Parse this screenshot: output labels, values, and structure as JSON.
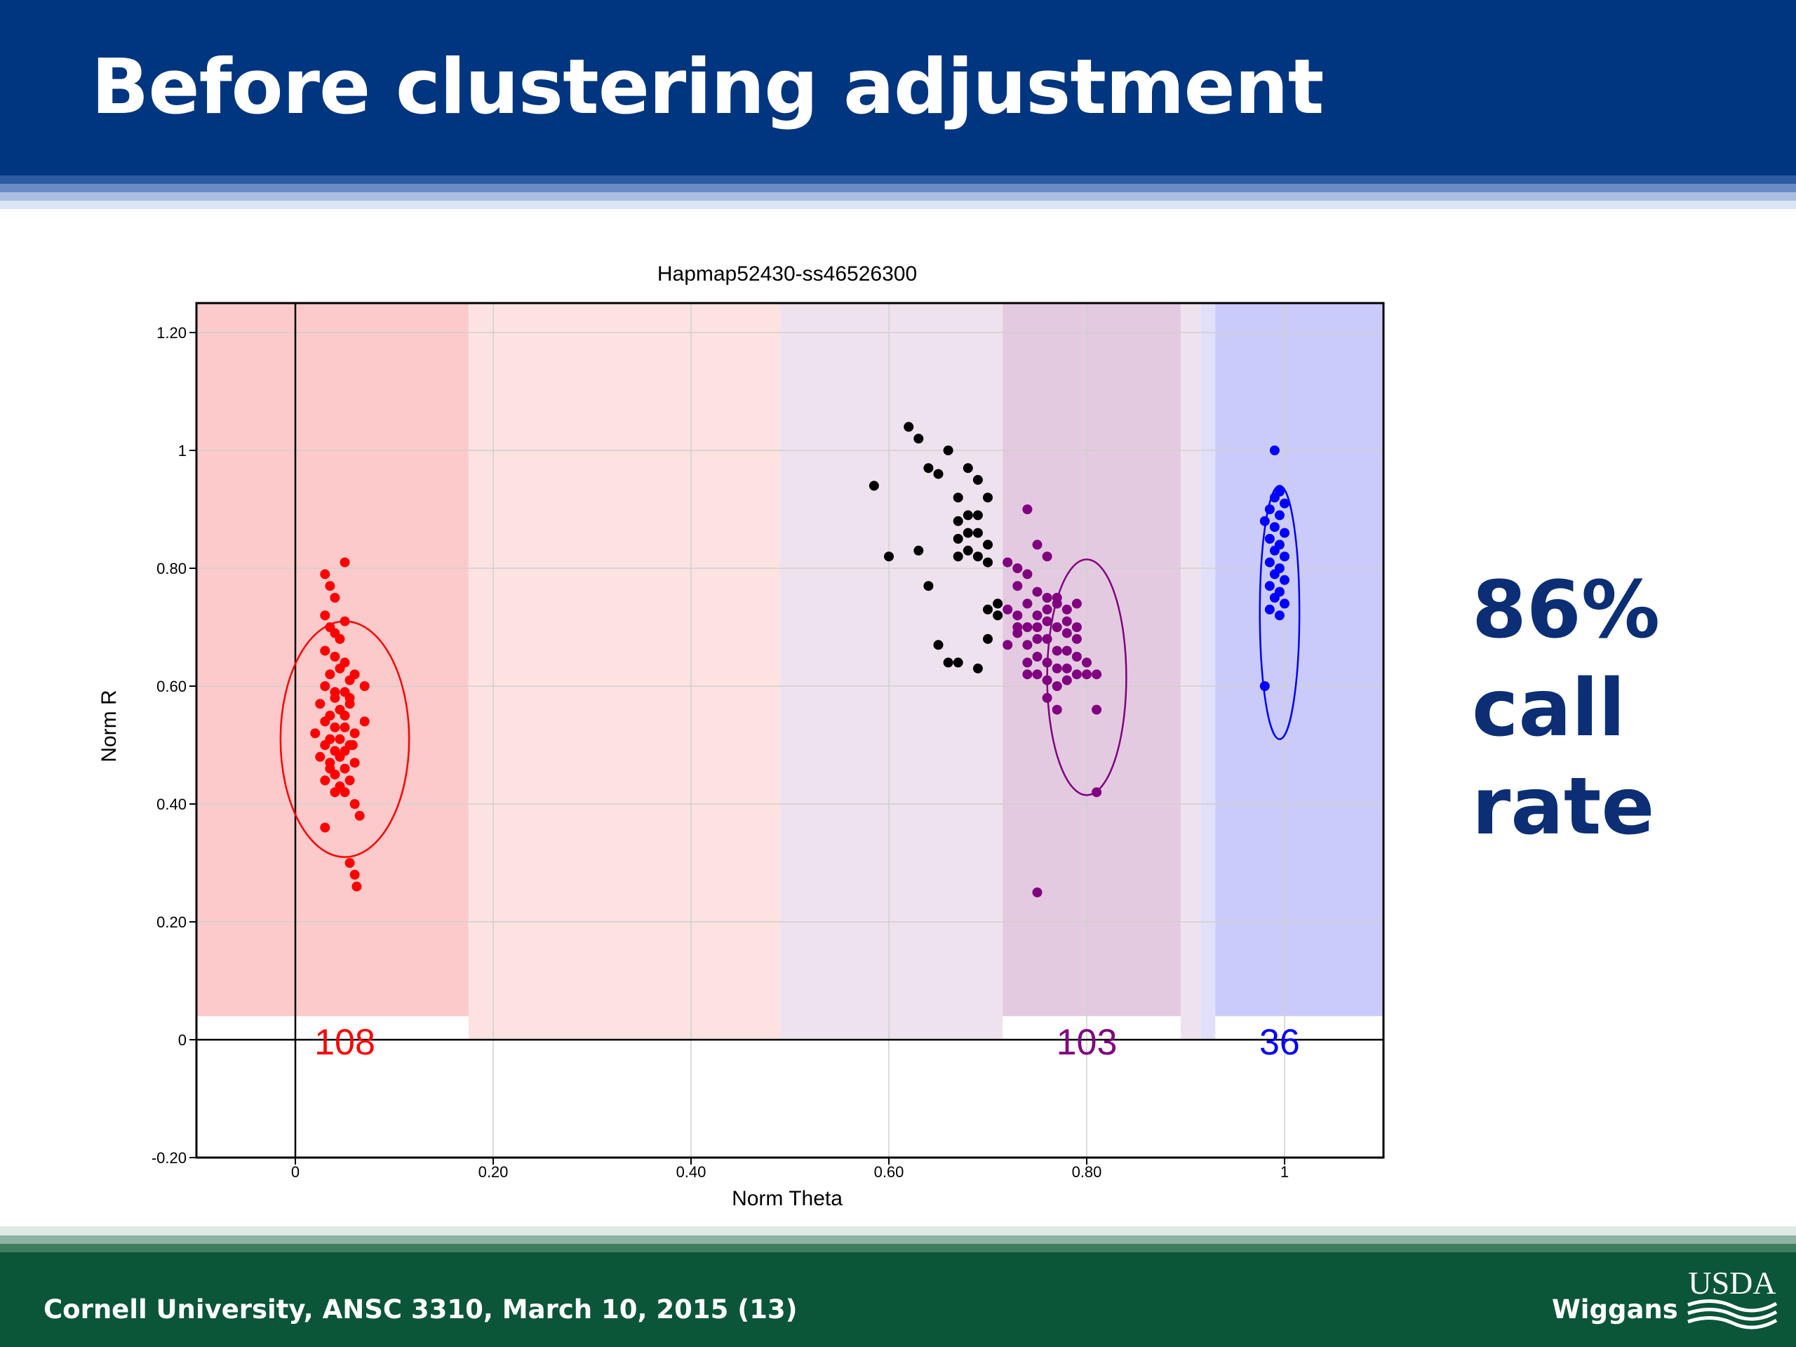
{
  "slide": {
    "title": "Before clustering adjustment",
    "stat_lines": [
      "86%",
      "call",
      "rate"
    ],
    "footer_left": "Cornell University, ANSC 3310, March 10, 2015 (13)",
    "footer_right": "Wiggans",
    "logo_text": "USDA"
  },
  "colors": {
    "header": "#00357f",
    "footer": "#0b5638",
    "stat_text": "#0b2e74",
    "AA": "#ff0000",
    "AB": "#800080",
    "BB": "#0000ff",
    "nocall": "#000000"
  },
  "chart_data": {
    "type": "scatter",
    "title": "Hapmap52430-ss46526300",
    "xlabel": "Norm Theta",
    "ylabel": "Norm R",
    "xlim": [
      -0.1,
      1.1
    ],
    "ylim": [
      -0.2,
      1.25
    ],
    "xticks": [
      0,
      0.2,
      0.4,
      0.6,
      0.8,
      1
    ],
    "xtick_labels": [
      "0",
      "0.20",
      "0.40",
      "0.60",
      "0.80",
      "1"
    ],
    "yticks": [
      -0.2,
      0,
      0.2,
      0.4,
      0.6,
      0.8,
      1,
      1.2
    ],
    "ytick_labels": [
      "-0.20",
      "0",
      "0.20",
      "0.40",
      "0.60",
      "0.80",
      "1",
      "1.20"
    ],
    "grid": true,
    "cluster_counts": [
      {
        "label": "108",
        "x": 0.05,
        "color": "#ff0000"
      },
      {
        "label": "103",
        "x": 0.8,
        "color": "#800080"
      },
      {
        "label": "36",
        "x": 0.995,
        "color": "#0000ff"
      }
    ],
    "regions": [
      {
        "x0": -0.1,
        "x1": 0.175,
        "y0": 0.04,
        "color": "#fccaca"
      },
      {
        "x0": 0.175,
        "x1": 0.49,
        "y0": 0.0,
        "color": "#fde2e2"
      },
      {
        "x0": 0.49,
        "x1": 0.715,
        "y0": 0.0,
        "color": "#efe2ef"
      },
      {
        "x0": 0.715,
        "x1": 0.895,
        "y0": 0.04,
        "color": "#e4cae0"
      },
      {
        "x0": 0.895,
        "x1": 0.915,
        "y0": 0.0,
        "color": "#efe2ef"
      },
      {
        "x0": 0.915,
        "x1": 0.93,
        "y0": 0.0,
        "color": "#e0e0fb"
      },
      {
        "x0": 0.93,
        "x1": 1.1,
        "y0": 0.04,
        "color": "#cbcbfb"
      }
    ],
    "ellipses": [
      {
        "cx": 0.05,
        "cy": 0.51,
        "rx": 0.065,
        "ry": 0.2,
        "color": "#ff0000"
      },
      {
        "cx": 0.8,
        "cy": 0.615,
        "rx": 0.04,
        "ry": 0.2,
        "color": "#800080"
      },
      {
        "cx": 0.995,
        "cy": 0.725,
        "rx": 0.02,
        "ry": 0.215,
        "color": "#0000ff"
      }
    ],
    "series": [
      {
        "color": "#ff0000",
        "points": [
          [
            0.03,
            0.79
          ],
          [
            0.05,
            0.81
          ],
          [
            0.035,
            0.77
          ],
          [
            0.04,
            0.75
          ],
          [
            0.03,
            0.72
          ],
          [
            0.035,
            0.7
          ],
          [
            0.04,
            0.69
          ],
          [
            0.05,
            0.71
          ],
          [
            0.03,
            0.66
          ],
          [
            0.04,
            0.65
          ],
          [
            0.045,
            0.63
          ],
          [
            0.035,
            0.62
          ],
          [
            0.055,
            0.61
          ],
          [
            0.06,
            0.62
          ],
          [
            0.07,
            0.6
          ],
          [
            0.03,
            0.6
          ],
          [
            0.05,
            0.59
          ],
          [
            0.04,
            0.58
          ],
          [
            0.025,
            0.57
          ],
          [
            0.045,
            0.56
          ],
          [
            0.055,
            0.57
          ],
          [
            0.035,
            0.55
          ],
          [
            0.05,
            0.55
          ],
          [
            0.07,
            0.54
          ],
          [
            0.03,
            0.54
          ],
          [
            0.04,
            0.53
          ],
          [
            0.05,
            0.53
          ],
          [
            0.06,
            0.52
          ],
          [
            0.02,
            0.52
          ],
          [
            0.035,
            0.51
          ],
          [
            0.045,
            0.51
          ],
          [
            0.055,
            0.5
          ],
          [
            0.03,
            0.5
          ],
          [
            0.04,
            0.49
          ],
          [
            0.05,
            0.49
          ],
          [
            0.025,
            0.48
          ],
          [
            0.045,
            0.48
          ],
          [
            0.06,
            0.47
          ],
          [
            0.035,
            0.47
          ],
          [
            0.05,
            0.46
          ],
          [
            0.04,
            0.45
          ],
          [
            0.055,
            0.44
          ],
          [
            0.03,
            0.44
          ],
          [
            0.045,
            0.43
          ],
          [
            0.05,
            0.42
          ],
          [
            0.04,
            0.42
          ],
          [
            0.06,
            0.4
          ],
          [
            0.065,
            0.38
          ],
          [
            0.03,
            0.36
          ],
          [
            0.055,
            0.3
          ],
          [
            0.06,
            0.28
          ],
          [
            0.062,
            0.26
          ],
          [
            0.04,
            0.59
          ],
          [
            0.05,
            0.64
          ],
          [
            0.045,
            0.68
          ],
          [
            0.055,
            0.58
          ],
          [
            0.035,
            0.46
          ],
          [
            0.058,
            0.5
          ]
        ]
      },
      {
        "color": "#800080",
        "points": [
          [
            0.74,
            0.9
          ],
          [
            0.72,
            0.81
          ],
          [
            0.73,
            0.8
          ],
          [
            0.75,
            0.84
          ],
          [
            0.76,
            0.82
          ],
          [
            0.74,
            0.79
          ],
          [
            0.73,
            0.77
          ],
          [
            0.75,
            0.76
          ],
          [
            0.76,
            0.75
          ],
          [
            0.74,
            0.74
          ],
          [
            0.77,
            0.74
          ],
          [
            0.78,
            0.73
          ],
          [
            0.79,
            0.74
          ],
          [
            0.72,
            0.73
          ],
          [
            0.73,
            0.72
          ],
          [
            0.75,
            0.72
          ],
          [
            0.76,
            0.71
          ],
          [
            0.74,
            0.7
          ],
          [
            0.77,
            0.7
          ],
          [
            0.78,
            0.69
          ],
          [
            0.73,
            0.69
          ],
          [
            0.75,
            0.68
          ],
          [
            0.76,
            0.68
          ],
          [
            0.74,
            0.67
          ],
          [
            0.77,
            0.66
          ],
          [
            0.78,
            0.66
          ],
          [
            0.79,
            0.65
          ],
          [
            0.75,
            0.65
          ],
          [
            0.76,
            0.64
          ],
          [
            0.74,
            0.64
          ],
          [
            0.77,
            0.63
          ],
          [
            0.78,
            0.63
          ],
          [
            0.79,
            0.62
          ],
          [
            0.75,
            0.62
          ],
          [
            0.76,
            0.61
          ],
          [
            0.8,
            0.62
          ],
          [
            0.81,
            0.62
          ],
          [
            0.72,
            0.67
          ],
          [
            0.73,
            0.7
          ],
          [
            0.76,
            0.73
          ],
          [
            0.77,
            0.75
          ],
          [
            0.78,
            0.71
          ],
          [
            0.79,
            0.68
          ],
          [
            0.8,
            0.64
          ],
          [
            0.74,
            0.62
          ],
          [
            0.76,
            0.58
          ],
          [
            0.77,
            0.56
          ],
          [
            0.81,
            0.56
          ],
          [
            0.81,
            0.42
          ],
          [
            0.75,
            0.25
          ],
          [
            0.75,
            0.7
          ],
          [
            0.77,
            0.6
          ],
          [
            0.79,
            0.7
          ],
          [
            0.78,
            0.61
          ]
        ]
      },
      {
        "color": "#0000ff",
        "points": [
          [
            0.99,
            1.0
          ],
          [
            0.995,
            0.93
          ],
          [
            0.99,
            0.92
          ],
          [
            1.0,
            0.91
          ],
          [
            0.985,
            0.9
          ],
          [
            0.995,
            0.89
          ],
          [
            0.98,
            0.88
          ],
          [
            0.99,
            0.87
          ],
          [
            1.0,
            0.86
          ],
          [
            0.985,
            0.85
          ],
          [
            0.995,
            0.84
          ],
          [
            0.99,
            0.83
          ],
          [
            1.0,
            0.82
          ],
          [
            0.985,
            0.81
          ],
          [
            0.995,
            0.8
          ],
          [
            0.99,
            0.79
          ],
          [
            1.0,
            0.78
          ],
          [
            0.985,
            0.77
          ],
          [
            0.995,
            0.76
          ],
          [
            0.99,
            0.75
          ],
          [
            1.0,
            0.74
          ],
          [
            0.985,
            0.73
          ],
          [
            0.995,
            0.72
          ],
          [
            0.98,
            0.6
          ]
        ]
      },
      {
        "color": "#000000",
        "points": [
          [
            0.62,
            1.04
          ],
          [
            0.63,
            1.02
          ],
          [
            0.66,
            1.0
          ],
          [
            0.64,
            0.97
          ],
          [
            0.65,
            0.96
          ],
          [
            0.68,
            0.97
          ],
          [
            0.69,
            0.95
          ],
          [
            0.7,
            0.92
          ],
          [
            0.67,
            0.92
          ],
          [
            0.69,
            0.89
          ],
          [
            0.68,
            0.89
          ],
          [
            0.67,
            0.88
          ],
          [
            0.68,
            0.86
          ],
          [
            0.69,
            0.86
          ],
          [
            0.7,
            0.84
          ],
          [
            0.67,
            0.85
          ],
          [
            0.68,
            0.83
          ],
          [
            0.69,
            0.82
          ],
          [
            0.67,
            0.82
          ],
          [
            0.7,
            0.81
          ],
          [
            0.585,
            0.94
          ],
          [
            0.6,
            0.82
          ],
          [
            0.63,
            0.83
          ],
          [
            0.64,
            0.77
          ],
          [
            0.71,
            0.74
          ],
          [
            0.7,
            0.73
          ],
          [
            0.71,
            0.72
          ],
          [
            0.65,
            0.67
          ],
          [
            0.66,
            0.64
          ],
          [
            0.67,
            0.64
          ],
          [
            0.69,
            0.63
          ],
          [
            0.7,
            0.68
          ]
        ]
      }
    ]
  }
}
